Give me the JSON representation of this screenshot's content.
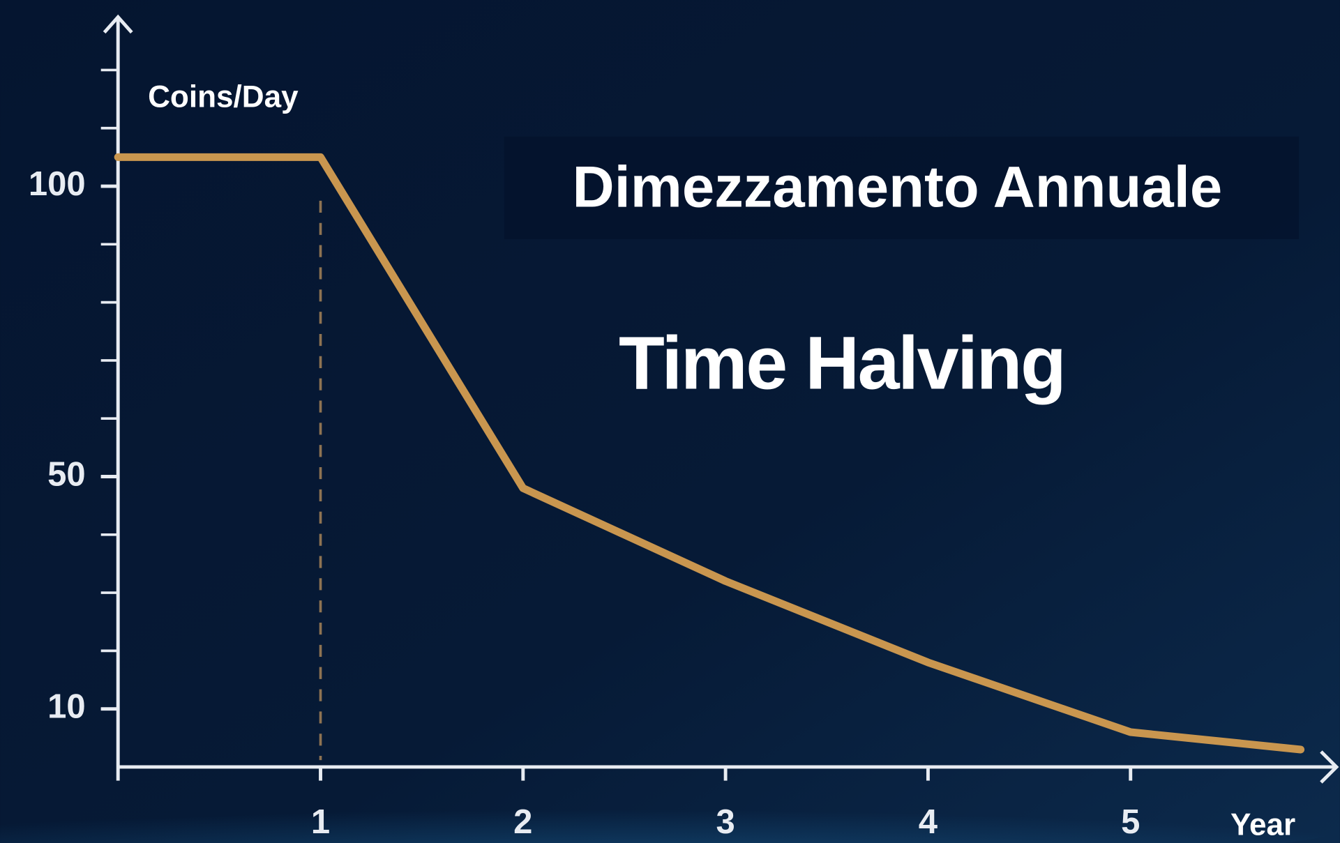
{
  "chart_data": {
    "type": "line",
    "title": "Dimezzamento Annuale",
    "subtitle": "Time Halving",
    "y_label": "Coins/Day",
    "x_label": "Year",
    "x": [
      0,
      1,
      2,
      3,
      4,
      5,
      5.84
    ],
    "values": [
      105,
      105,
      48,
      32,
      18,
      6,
      3
    ],
    "color": "#c9964f",
    "xlim": [
      0,
      6
    ],
    "ylim": [
      0,
      120
    ],
    "xticks": [
      1,
      2,
      3,
      4,
      5
    ],
    "yticks": [
      10,
      50,
      100
    ]
  }
}
